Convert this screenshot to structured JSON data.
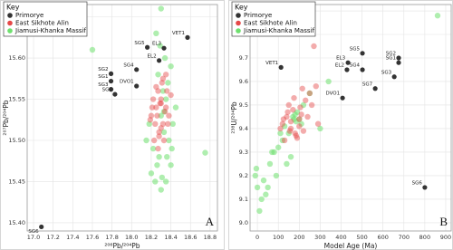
{
  "chart_data": [
    {
      "type": "scatter",
      "panel_label": "A",
      "xlabel": "²⁰⁶Pb/²⁰⁴Pb",
      "ylabel": "²⁰⁷Pb/²⁰⁴Pb",
      "legend_title": "Key",
      "legend": "upper left",
      "grid": true,
      "xlim": [
        16.935,
        18.875
      ],
      "xticks": [
        {
          "value": 17,
          "label": "17.0"
        },
        17.2,
        17.4,
        17.6,
        17.8,
        {
          "value": 18,
          "label": "18.0"
        },
        18.2,
        18.4,
        18.6,
        18.8
      ],
      "ylim": [
        15.39,
        15.665
      ],
      "yticks": [
        {
          "value": 15.4,
          "label": "15.40"
        },
        15.45,
        {
          "value": 15.5,
          "label": "15.50"
        },
        15.55,
        {
          "value": 15.6,
          "label": "15.60"
        },
        15.65
      ],
      "series": [
        {
          "name": "Jiamusi-Khanka Massif",
          "color": "#6ee06e",
          "alpha": 0.55,
          "x": [
            17.6,
            18.75,
            18.3,
            18.25,
            18.2,
            18.3,
            18.35,
            18.4,
            18.28,
            18.22,
            18.38,
            18.33,
            18.18,
            18.42,
            18.3,
            18.35,
            18.32,
            18.37,
            18.27,
            18.4,
            18.34,
            18.29,
            18.45,
            18.15,
            18.36,
            18.26,
            18.31,
            18.24,
            18.41,
            18.33
          ],
          "values": [
            15.61,
            15.485,
            15.66,
            15.63,
            15.46,
            15.44,
            15.45,
            15.47,
            15.48,
            15.49,
            15.5,
            15.51,
            15.52,
            15.52,
            15.53,
            15.55,
            15.56,
            15.57,
            15.58,
            15.59,
            15.6,
            15.615,
            15.54,
            15.5,
            15.48,
            15.47,
            15.455,
            15.45,
            15.49,
            15.535
          ]
        },
        {
          "name": "East Sikhote Alin",
          "color": "#e54848",
          "alpha": 0.45,
          "x": [
            18.2,
            18.25,
            18.3,
            18.32,
            18.28,
            18.22,
            18.35,
            18.38,
            18.27,
            18.31,
            18.24,
            18.33,
            18.29,
            18.36,
            18.21,
            18.26,
            18.3,
            18.34,
            18.19,
            18.4,
            18.32,
            18.28,
            18.25,
            18.37,
            18.3,
            18.23,
            18.35,
            18.27
          ],
          "values": [
            15.53,
            15.54,
            15.55,
            15.52,
            15.51,
            15.55,
            15.54,
            15.53,
            15.56,
            15.57,
            15.52,
            15.5,
            15.545,
            15.56,
            15.54,
            15.53,
            15.515,
            15.535,
            15.525,
            15.555,
            15.575,
            15.505,
            15.565,
            15.52,
            15.545,
            15.5,
            15.58,
            15.49
          ]
        },
        {
          "name": "Primorye",
          "color": "#333333",
          "alpha": 1,
          "labels": [
            "SG6",
            "SG5",
            "EL3",
            "VET1",
            "SG2",
            "SG4",
            "EL2",
            "SG1",
            "SG3",
            "SG7",
            "DVO1"
          ],
          "x": [
            17.08,
            18.16,
            18.33,
            18.57,
            17.79,
            18.05,
            18.28,
            17.79,
            17.79,
            17.83,
            18.05
          ],
          "values": [
            15.395,
            15.613,
            15.612,
            15.625,
            15.581,
            15.586,
            15.597,
            15.572,
            15.562,
            15.556,
            15.566
          ]
        }
      ]
    },
    {
      "type": "scatter",
      "panel_label": "B",
      "xlabel": "Model Age (Ma)",
      "ylabel": "²³⁸U/²⁰⁴Pb",
      "legend_title": "Key",
      "legend": "upper left",
      "grid": true,
      "xlim": [
        -35,
        926
      ],
      "xticks": [
        0,
        100,
        200,
        300,
        400,
        500,
        600,
        700,
        800,
        900
      ],
      "ylim": [
        8.965,
        9.927
      ],
      "yticks": [
        {
          "value": 9,
          "label": "9.0"
        },
        9.1,
        9.2,
        9.3,
        9.4,
        9.5,
        9.6,
        9.7,
        9.8,
        9.9
      ],
      "series": [
        {
          "name": "Jiamusi-Khanka Massif",
          "color": "#6ee06e",
          "alpha": 0.55,
          "x": [
            -10,
            0,
            20,
            40,
            10,
            -5,
            30,
            60,
            80,
            100,
            120,
            150,
            170,
            180,
            190,
            200,
            210,
            160,
            140,
            90,
            50,
            70,
            220,
            250,
            300,
            340,
            264,
            861,
            110,
            130,
            175,
            185
          ],
          "values": [
            9.2,
            9.15,
            9.1,
            9.12,
            9.05,
            9.23,
            9.18,
            9.25,
            9.3,
            9.32,
            9.35,
            9.38,
            9.45,
            9.46,
            9.47,
            9.44,
            9.42,
            9.28,
            9.25,
            9.2,
            9.15,
            9.3,
            9.5,
            9.55,
            9.4,
            9.6,
            9.86,
            9.88,
            9.38,
            9.41,
            9.44,
            9.43
          ]
        },
        {
          "name": "East Sikhote Alin",
          "color": "#e54848",
          "alpha": 0.45,
          "x": [
            120,
            140,
            160,
            180,
            200,
            150,
            170,
            190,
            210,
            230,
            250,
            130,
            160,
            200,
            220,
            260,
            280,
            110,
            145,
            175,
            205,
            240,
            270,
            185,
            155,
            215,
            290,
            125
          ],
          "values": [
            9.42,
            9.45,
            9.4,
            9.38,
            9.44,
            9.5,
            9.48,
            9.36,
            9.46,
            9.52,
            9.55,
            9.35,
            9.43,
            9.41,
            9.39,
            9.5,
            9.58,
            9.4,
            9.47,
            9.53,
            9.49,
            9.45,
            9.75,
            9.37,
            9.39,
            9.57,
            9.42,
            9.44
          ]
        },
        {
          "name": "Primorye",
          "color": "#333333",
          "alpha": 1,
          "labels": [
            "VET1",
            "EL3",
            "EL2",
            "SG5",
            "SG2",
            "SG1",
            "SG4",
            "SG3",
            "SG7",
            "DVO1",
            "SG6"
          ],
          "x": [
            113,
            433,
            428,
            502,
            675,
            675,
            502,
            654,
            563,
            407,
            800
          ],
          "values": [
            9.66,
            9.68,
            9.65,
            9.72,
            9.7,
            9.68,
            9.65,
            9.62,
            9.57,
            9.53,
            9.15
          ]
        }
      ]
    }
  ]
}
